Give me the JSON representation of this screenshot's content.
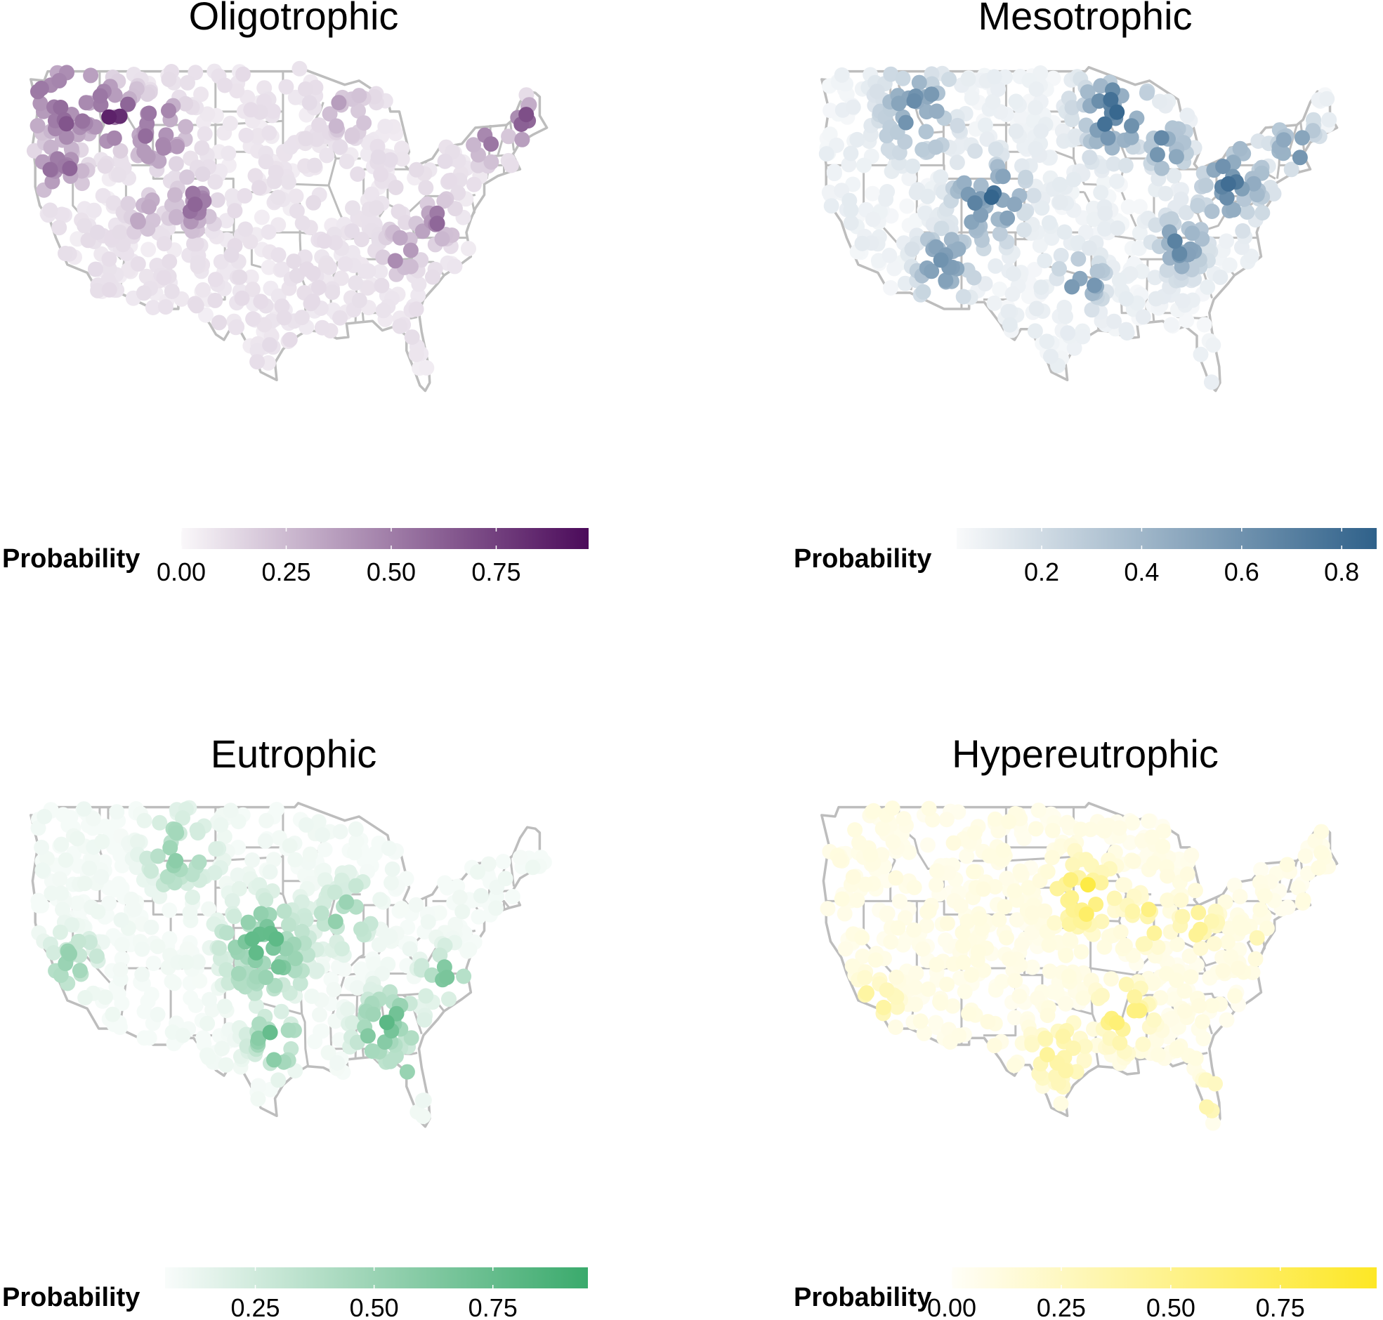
{
  "panels": [
    {
      "title": "Oligotrophic",
      "color": "#4b0a5a",
      "legend_title": "Probability",
      "legend_range": [
        0.0,
        0.97
      ],
      "ticks": [
        {
          "value": 0.0,
          "label": "0.00"
        },
        {
          "value": 0.25,
          "label": "0.25"
        },
        {
          "value": 0.5,
          "label": "0.50"
        },
        {
          "value": 0.75,
          "label": "0.75"
        }
      ],
      "hotspots": [
        {
          "lon": -121.0,
          "lat": 46.8,
          "spread": 4.0,
          "p": 0.85,
          "weight": 3
        },
        {
          "lon": -115.5,
          "lat": 45.8,
          "spread": 3.0,
          "p": 0.8,
          "weight": 2
        },
        {
          "lon": -121.5,
          "lat": 41.5,
          "spread": 2.5,
          "p": 0.7,
          "weight": 1
        },
        {
          "lon": -110.5,
          "lat": 44.5,
          "spread": 3.0,
          "p": 0.75,
          "weight": 1
        },
        {
          "lon": -106.5,
          "lat": 39.0,
          "spread": 2.5,
          "p": 0.6,
          "weight": 1
        },
        {
          "lon": -112.0,
          "lat": 38.5,
          "spread": 2.0,
          "p": 0.45,
          "weight": 1
        },
        {
          "lon": -69.5,
          "lat": 45.0,
          "spread": 2.0,
          "p": 0.85,
          "weight": 1
        },
        {
          "lon": -73.8,
          "lat": 43.5,
          "spread": 1.8,
          "p": 0.6,
          "weight": 1
        },
        {
          "lon": -79.5,
          "lat": 37.8,
          "spread": 2.2,
          "p": 0.55,
          "weight": 1
        },
        {
          "lon": -83.5,
          "lat": 35.6,
          "spread": 2.0,
          "p": 0.55,
          "weight": 1
        },
        {
          "lon": -89.5,
          "lat": 46.3,
          "spread": 3.0,
          "p": 0.35,
          "weight": 1
        }
      ]
    },
    {
      "title": "Mesotrophic",
      "color": "#2f618a",
      "legend_title": "Probability",
      "legend_range": [
        0.03,
        0.87
      ],
      "ticks": [
        {
          "value": 0.2,
          "label": "0.2"
        },
        {
          "value": 0.4,
          "label": "0.4"
        },
        {
          "value": 0.6,
          "label": "0.6"
        },
        {
          "value": 0.8,
          "label": "0.8"
        }
      ],
      "hotspots": [
        {
          "lon": -92.0,
          "lat": 46.0,
          "spread": 4.0,
          "p": 0.8,
          "weight": 2
        },
        {
          "lon": -86.0,
          "lat": 43.5,
          "spread": 2.5,
          "p": 0.75,
          "weight": 1
        },
        {
          "lon": -79.0,
          "lat": 40.8,
          "spread": 4.0,
          "p": 0.7,
          "weight": 2
        },
        {
          "lon": -71.5,
          "lat": 43.5,
          "spread": 2.5,
          "p": 0.7,
          "weight": 1
        },
        {
          "lon": -111.0,
          "lat": 34.5,
          "spread": 3.0,
          "p": 0.8,
          "weight": 1
        },
        {
          "lon": -106.0,
          "lat": 39.5,
          "spread": 4.0,
          "p": 0.75,
          "weight": 2
        },
        {
          "lon": -114.0,
          "lat": 46.0,
          "spread": 4.0,
          "p": 0.7,
          "weight": 1
        },
        {
          "lon": -95.5,
          "lat": 33.5,
          "spread": 2.5,
          "p": 0.7,
          "weight": 1
        },
        {
          "lon": -84.5,
          "lat": 36.0,
          "spread": 3.0,
          "p": 0.65,
          "weight": 1
        }
      ]
    },
    {
      "title": "Eutrophic",
      "color": "#3aaa6c",
      "legend_title": "Probability",
      "legend_range": [
        0.06,
        0.95
      ],
      "ticks": [
        {
          "value": 0.25,
          "label": "0.25"
        },
        {
          "value": 0.5,
          "label": "0.50"
        },
        {
          "value": 0.75,
          "label": "0.75"
        }
      ],
      "hotspots": [
        {
          "lon": -98.5,
          "lat": 38.5,
          "spread": 5.0,
          "p": 0.75,
          "weight": 2
        },
        {
          "lon": -97.5,
          "lat": 31.5,
          "spread": 3.0,
          "p": 0.75,
          "weight": 1
        },
        {
          "lon": -85.0,
          "lat": 32.5,
          "spread": 3.5,
          "p": 0.8,
          "weight": 2
        },
        {
          "lon": -82.5,
          "lat": 28.5,
          "spread": 1.8,
          "p": 0.75,
          "weight": 1
        },
        {
          "lon": -89.5,
          "lat": 41.0,
          "spread": 3.5,
          "p": 0.55,
          "weight": 1
        },
        {
          "lon": -78.5,
          "lat": 36.5,
          "spread": 2.5,
          "p": 0.7,
          "weight": 1
        },
        {
          "lon": -120.0,
          "lat": 37.5,
          "spread": 3.0,
          "p": 0.55,
          "weight": 1
        },
        {
          "lon": -108.0,
          "lat": 45.5,
          "spread": 4.0,
          "p": 0.55,
          "weight": 1
        }
      ]
    },
    {
      "title": "Hypereutrophic",
      "color": "#fde725",
      "legend_title": "Probability",
      "legend_range": [
        0.0,
        0.97
      ],
      "ticks": [
        {
          "value": 0.0,
          "label": "0.00"
        },
        {
          "value": 0.25,
          "label": "0.25"
        },
        {
          "value": 0.5,
          "label": "0.50"
        },
        {
          "value": 0.75,
          "label": "0.75"
        }
      ],
      "hotspots": [
        {
          "lon": -95.5,
          "lat": 42.5,
          "spread": 3.5,
          "p": 0.8,
          "weight": 2
        },
        {
          "lon": -91.0,
          "lat": 33.5,
          "spread": 3.0,
          "p": 0.75,
          "weight": 1
        },
        {
          "lon": -88.5,
          "lat": 40.5,
          "spread": 2.5,
          "p": 0.6,
          "weight": 1
        },
        {
          "lon": -82.5,
          "lat": 40.5,
          "spread": 2.5,
          "p": 0.55,
          "weight": 1
        },
        {
          "lon": -81.5,
          "lat": 27.5,
          "spread": 1.5,
          "p": 0.7,
          "weight": 1
        },
        {
          "lon": -98.0,
          "lat": 30.5,
          "spread": 3.5,
          "p": 0.45,
          "weight": 1
        },
        {
          "lon": -118.5,
          "lat": 34.5,
          "spread": 2.5,
          "p": 0.5,
          "weight": 1
        },
        {
          "lon": -76.0,
          "lat": 39.0,
          "spread": 1.5,
          "p": 0.45,
          "weight": 1
        }
      ]
    }
  ]
}
